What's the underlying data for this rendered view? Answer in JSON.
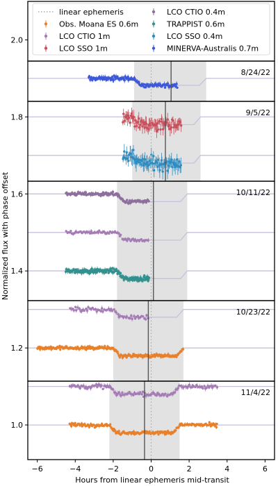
{
  "chart_data": {
    "type": "scatter",
    "xlabel": "Hours from linear ephemeris mid-transit",
    "ylabel": "Normalized flux with phase offset",
    "xlim": [
      -6.5,
      6.5
    ],
    "ylim": [
      0.91,
      2.1
    ],
    "xticks": [
      -6,
      -4,
      -2,
      0,
      2,
      4,
      6
    ],
    "yticks": [
      1.0,
      1.2,
      1.4,
      1.6,
      1.8,
      2.0
    ],
    "reference_line": {
      "label": "linear ephemeris",
      "x": 0
    },
    "legend": {
      "placement": "top",
      "entries": [
        {
          "label": "linear ephemeris",
          "kind": "dotted-line",
          "color": "#aaaaaa"
        },
        {
          "label": "LCO CTIO 0.4m",
          "kind": "errorbar",
          "color": "#8e6f9e"
        },
        {
          "label": "Obs. Moana ES 0.6m",
          "kind": "errorbar",
          "color": "#e8802b"
        },
        {
          "label": "TRAPPIST 0.6m",
          "kind": "errorbar",
          "color": "#33908e"
        },
        {
          "label": "LCO CTIO 1m",
          "kind": "errorbar",
          "color": "#a57bb5"
        },
        {
          "label": "LCO SSO 0.4m",
          "kind": "errorbar",
          "color": "#2f8cc0"
        },
        {
          "label": "LCO SSO 1m",
          "kind": "errorbar",
          "color": "#c7505c"
        },
        {
          "label": "MINERVA-Australis 0.7m",
          "kind": "errorbar",
          "color": "#3d59d8"
        }
      ]
    },
    "panels": [
      {
        "date": "8/24/22",
        "y_range": [
          1.857,
          1.95
        ],
        "shade": [
          -0.9,
          2.9
        ],
        "observed_midtransit": 1.05,
        "series": [
          {
            "name": "MINERVA-Australis 0.7m",
            "color": "#3d59d8",
            "baseline": 1.9,
            "depth": 0.018,
            "ingress": -0.9,
            "egress": 2.9,
            "x_range": [
              -3.3,
              1.4
            ],
            "noise": 0.005,
            "n": 130
          }
        ]
      },
      {
        "date": "9/5/22",
        "y_range": [
          1.65,
          1.855
        ],
        "shade": [
          -1.0,
          2.6
        ],
        "observed_midtransit": 0.75,
        "series": [
          {
            "name": "LCO SSO 1m",
            "color": "#c7505c",
            "baseline": 1.8,
            "depth": 0.02,
            "ingress": -1.0,
            "egress": 2.6,
            "x_range": [
              -1.5,
              1.6
            ],
            "noise": 0.014,
            "n": 75
          },
          {
            "name": "LCO SSO 0.4m",
            "color": "#2f8cc0",
            "baseline": 1.7,
            "depth": 0.02,
            "ingress": -1.0,
            "egress": 2.6,
            "x_range": [
              -1.5,
              1.6
            ],
            "noise": 0.016,
            "n": 75
          }
        ]
      },
      {
        "date": "10/11/22",
        "y_range": [
          1.345,
          1.65
        ],
        "shade": [
          -1.8,
          1.9
        ],
        "observed_midtransit": 0.12,
        "series": [
          {
            "name": "LCO CTIO 0.4m",
            "color": "#8e6f9e",
            "baseline": 1.6,
            "depth": 0.02,
            "ingress": -1.8,
            "egress": 1.9,
            "x_range": [
              -4.5,
              -0.1
            ],
            "noise": 0.004,
            "n": 130
          },
          {
            "name": "LCO CTIO 1m",
            "color": "#a57bb5",
            "baseline": 1.5,
            "depth": 0.02,
            "ingress": -1.8,
            "egress": 1.9,
            "x_range": [
              -4.5,
              -0.1
            ],
            "noise": 0.004,
            "n": 70
          },
          {
            "name": "TRAPPIST 0.6m",
            "color": "#33908e",
            "baseline": 1.4,
            "depth": 0.02,
            "ingress": -1.8,
            "egress": 1.9,
            "x_range": [
              -4.5,
              -0.1
            ],
            "noise": 0.005,
            "n": 180
          }
        ]
      },
      {
        "date": "10/23/22",
        "y_range": [
          1.145,
          1.345
        ],
        "shade": [
          -2.0,
          1.7
        ],
        "observed_midtransit": -0.15,
        "series": [
          {
            "name": "LCO CTIO 1m",
            "color": "#a57bb5",
            "baseline": 1.3,
            "depth": 0.02,
            "ingress": -2.0,
            "egress": 1.7,
            "x_range": [
              -4.3,
              -0.1
            ],
            "noise": 0.005,
            "n": 60
          },
          {
            "name": "Obs. Moana ES 0.6m",
            "color": "#e8802b",
            "baseline": 1.2,
            "depth": 0.02,
            "ingress": -2.0,
            "egress": 1.7,
            "x_range": [
              -6.0,
              1.7
            ],
            "noise": 0.004,
            "n": 210
          }
        ]
      },
      {
        "date": "11/4/22",
        "y_range": [
          0.91,
          1.145
        ],
        "shade": [
          -2.2,
          1.5
        ],
        "observed_midtransit": -0.35,
        "series": [
          {
            "name": "LCO CTIO 1m",
            "color": "#a57bb5",
            "baseline": 1.1,
            "depth": 0.02,
            "ingress": -2.2,
            "egress": 1.5,
            "x_range": [
              -4.3,
              3.5
            ],
            "noise": 0.005,
            "n": 130
          },
          {
            "name": "Obs. Moana ES 0.6m",
            "color": "#e8802b",
            "baseline": 1.0,
            "depth": 0.02,
            "ingress": -2.2,
            "egress": 1.5,
            "x_range": [
              -4.3,
              3.5
            ],
            "noise": 0.004,
            "n": 190
          }
        ]
      }
    ]
  }
}
